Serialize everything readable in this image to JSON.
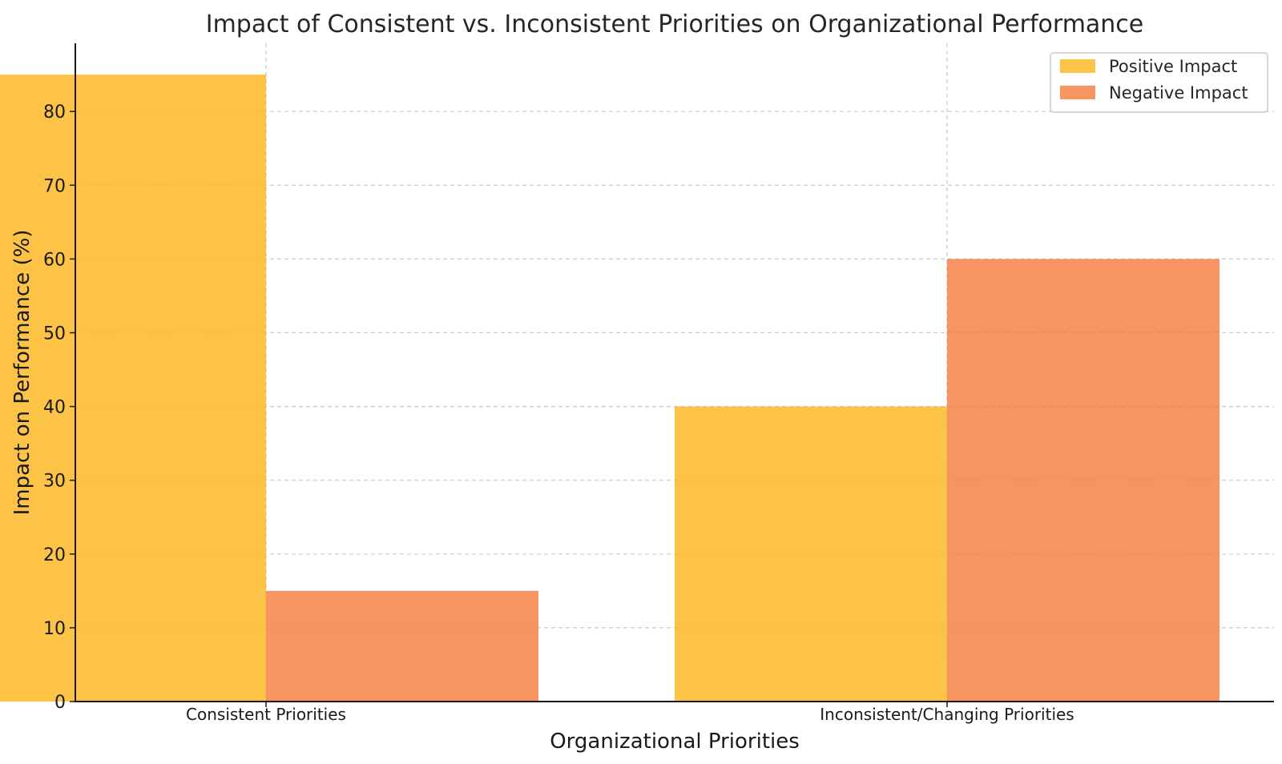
{
  "chart_data": {
    "type": "bar",
    "title": "Impact of Consistent vs. Inconsistent Priorities on Organizational Performance",
    "xlabel": "Organizational Priorities",
    "ylabel": "Impact on Performance (%)",
    "categories": [
      "Consistent Priorities",
      "Inconsistent/Changing Priorities"
    ],
    "series": [
      {
        "name": "Positive Impact",
        "values": [
          85,
          40
        ],
        "color": "#FDB827",
        "opacity": 0.85
      },
      {
        "name": "Negative Impact",
        "values": [
          15,
          60
        ],
        "color": "#F47B3B",
        "opacity": 0.8
      }
    ],
    "ylim": [
      0,
      89.25
    ],
    "yticks": [
      0,
      10,
      20,
      30,
      40,
      50,
      60,
      70,
      80
    ],
    "grid": true,
    "legend": "top-right"
  }
}
